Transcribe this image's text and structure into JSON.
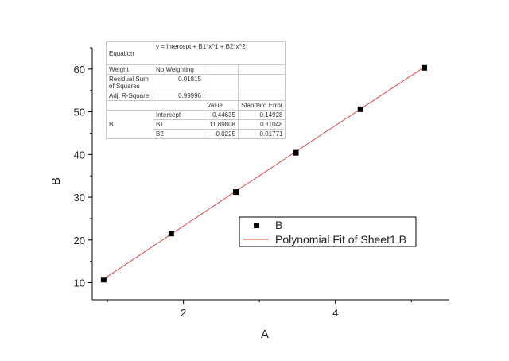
{
  "chart_data": {
    "type": "scatter",
    "xlabel": "A",
    "ylabel": "B",
    "xlim": [
      0.8,
      5.5
    ],
    "ylim": [
      6,
      65
    ],
    "x_ticks": [
      2,
      4
    ],
    "y_ticks": [
      10,
      20,
      30,
      40,
      50,
      60
    ],
    "grid": false,
    "legend_position": "lower-right",
    "series": [
      {
        "name": "B",
        "style": "markers",
        "color": "#000000",
        "x": [
          0.95,
          1.84,
          2.69,
          3.48,
          4.33,
          5.17
        ],
        "y": [
          10.7,
          21.5,
          31.2,
          40.4,
          50.6,
          60.3
        ]
      },
      {
        "name": "Polynomial Fit of Sheet1 B",
        "style": "line",
        "color": "#e04a4a",
        "x_range": [
          0.95,
          5.17
        ],
        "coefficients": {
          "intercept": -0.44635,
          "b1": 11.89808,
          "b2": -0.0225
        }
      }
    ]
  },
  "stats": {
    "equation_label": "Equation",
    "equation": "y = Intercept + B1*x^1 + B2*x^2",
    "weight_label": "Weight",
    "weight_value": "No Weighting",
    "rss_label": "Residual Sum of Squares",
    "rss_value": "0.01815",
    "adj_r2_label": "Adj. R-Square",
    "adj_r2_value": "0.99996",
    "col_value": "Value",
    "col_stderr": "Standard Error",
    "param_group": "B",
    "params": [
      {
        "name": "Intercept",
        "value": "-0.44635",
        "stderr": "0.14928"
      },
      {
        "name": "B1",
        "value": "11.89808",
        "stderr": "0.11048"
      },
      {
        "name": "B2",
        "value": "-0.0225",
        "stderr": "0.01771"
      }
    ]
  }
}
